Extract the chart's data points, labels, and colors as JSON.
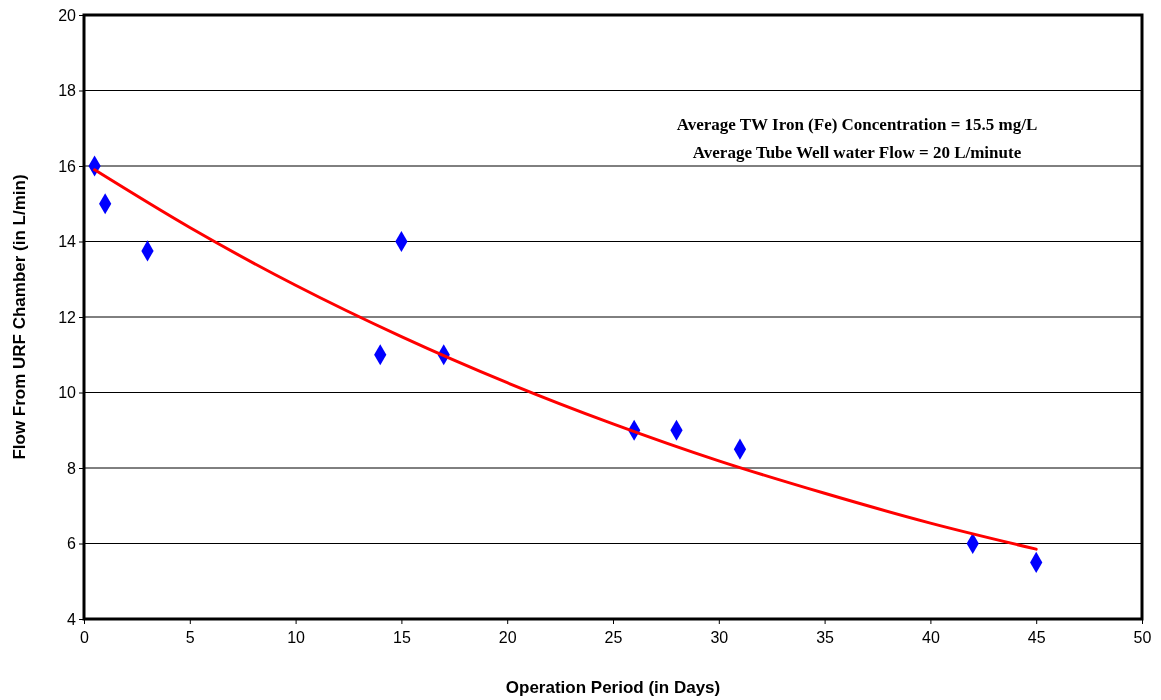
{
  "chart_data": {
    "type": "scatter",
    "xlabel": "Operation Period (in Days)",
    "ylabel": "Flow From  URF Chamber (in L/min)",
    "xlim": [
      0,
      50
    ],
    "xticks": [
      0,
      5,
      10,
      15,
      20,
      25,
      30,
      35,
      40,
      45,
      50
    ],
    "ylim": [
      4,
      20
    ],
    "yticks": [
      4,
      6,
      8,
      10,
      12,
      14,
      16,
      18,
      20
    ],
    "grid": "y",
    "annotations": [
      "Average TW Iron (Fe) Concentration = 15.5 mg/L",
      "Average Tube Well water Flow = 20 L/minute"
    ],
    "series": [
      {
        "color": "#0000ff",
        "marker": "diamond",
        "x": [
          0.5,
          1,
          3,
          14,
          15,
          17,
          26,
          28,
          31,
          42,
          45
        ],
        "values": [
          16,
          15,
          13.75,
          11,
          14,
          11,
          9,
          9,
          8.5,
          6,
          5.5
        ]
      },
      {
        "type": "line",
        "color": "#ff0000",
        "marker": "none",
        "x": [
          0.5,
          5,
          10,
          15,
          20,
          25,
          30,
          35,
          40,
          45
        ],
        "values": [
          15.9,
          14.37,
          12.84,
          11.48,
          10.26,
          9.17,
          8.19,
          7.33,
          6.54,
          5.85
        ]
      }
    ]
  }
}
